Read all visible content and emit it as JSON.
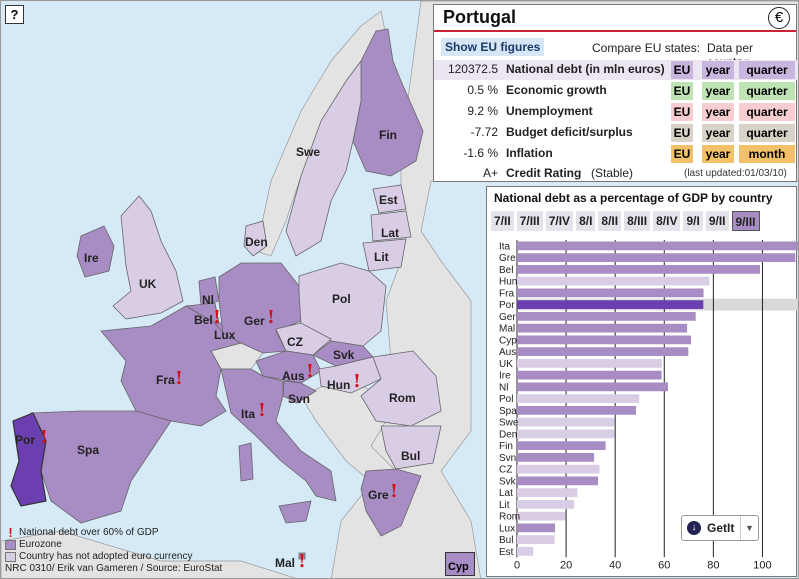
{
  "map": {
    "help_label": "?",
    "labels": {
      "fin": "Fin",
      "swe": "Swe",
      "est": "Est",
      "lat": "Lat",
      "lit": "Lit",
      "den": "Den",
      "ire": "Ire",
      "uk": "UK",
      "nl": "Nl",
      "bel": "Bel",
      "lux": "Lux",
      "ger": "Ger",
      "pol": "Pol",
      "cz": "CZ",
      "svk": "Svk",
      "aus": "Aus",
      "hun": "Hun",
      "fra": "Fra",
      "svn": "Svn",
      "rom": "Rom",
      "ita": "Ita",
      "bul": "Bul",
      "por": "Por",
      "spa": "Spa",
      "gre": "Gre",
      "mal": "Mal",
      "cyp": "Cyp"
    },
    "excl_mark": "!"
  },
  "legend": {
    "debt_over": "National debt over 60% of GDP",
    "eurozone": "Eurozone",
    "non_euro": "Country has not adopted euro currency",
    "credits": "NRC 0310/ Erik van Gameren / Source: EuroStat",
    "mark": "!"
  },
  "colors": {
    "eurozone": "#a88cc4",
    "non_euro": "#d9cde6",
    "selected": "#6b3fb0",
    "sea": "#d6e9f7",
    "outside": "#e3e3e3"
  },
  "info": {
    "country": "Portugal",
    "euro_symbol": "€",
    "show_eu": "Show EU figures",
    "compare_label": "Compare EU states:",
    "data_per_country_label": "Data per country:",
    "rows": [
      {
        "value": "120372.5",
        "label": "National debt (in mln euros)",
        "eu": "EU",
        "year": "year",
        "period": "quarter",
        "tint": "#c9b6de"
      },
      {
        "value": "0.5 %",
        "label": "Economic growth",
        "eu": "EU",
        "year": "year",
        "period": "quarter",
        "tint": "#bfe3b4"
      },
      {
        "value": "9.2 %",
        "label": "Unemployment",
        "eu": "EU",
        "year": "year",
        "period": "quarter",
        "tint": "#f7cdd0"
      },
      {
        "value": "-7.72",
        "label": "Budget deficit/surplus",
        "eu": "EU",
        "year": "year",
        "period": "quarter",
        "tint": "#d8d2c8"
      },
      {
        "value": "-1.6 %",
        "label": "Inflation",
        "eu": "EU",
        "year": "year",
        "period": "month",
        "tint": "#f3c16a"
      }
    ],
    "rating": {
      "value": "A+",
      "label": "Credit Rating",
      "state": "(Stable)",
      "updated": "(last updated:01/03/10)"
    }
  },
  "chart": {
    "tabs": [
      "7/II",
      "7/III",
      "7/IV",
      "8/I",
      "8/II",
      "8/III",
      "8/IV",
      "9/I",
      "9/II",
      "9/III"
    ],
    "active_tab": 9
  },
  "getit": {
    "label": "GetIt",
    "icon": "download-icon"
  },
  "chart_data": {
    "type": "bar",
    "orientation": "horizontal",
    "title": "National debt as a percentage of GDP by country",
    "categories": [
      "Ita",
      "Gre",
      "Bel",
      "Hun",
      "Fra",
      "Por",
      "Ger",
      "Mal",
      "Cyp",
      "Aus",
      "UK",
      "Ire",
      "Nl",
      "Pol",
      "Spa",
      "Swe",
      "Den",
      "Fin",
      "Svn",
      "CZ",
      "Svk",
      "Lat",
      "Lit",
      "Rom",
      "Lux",
      "Bul",
      "Est"
    ],
    "values": [
      115.8,
      113.4,
      99.0,
      78.4,
      76.0,
      75.9,
      72.8,
      69.3,
      70.9,
      69.8,
      59.0,
      58.9,
      61.5,
      49.8,
      48.5,
      39.7,
      39.7,
      36.1,
      31.4,
      33.6,
      33.0,
      24.6,
      23.3,
      19.7,
      15.5,
      15.3,
      6.6
    ],
    "eurozone": [
      true,
      true,
      true,
      false,
      true,
      true,
      true,
      true,
      true,
      true,
      false,
      true,
      true,
      false,
      true,
      false,
      false,
      true,
      true,
      false,
      true,
      false,
      false,
      false,
      true,
      false,
      false
    ],
    "highlight": "Por",
    "xlim": [
      0,
      110
    ],
    "xticks": [
      0,
      20,
      40,
      60,
      80,
      100
    ],
    "grid": true
  }
}
